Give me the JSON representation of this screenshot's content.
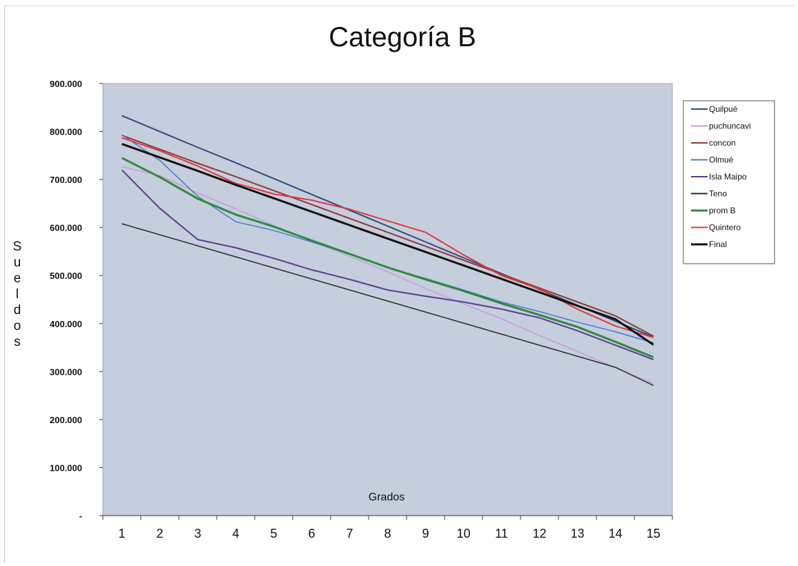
{
  "chart_data": {
    "type": "line",
    "title": "Categoría B",
    "xlabel": "Grados",
    "ylabel": "Sueldos",
    "x": [
      1,
      2,
      3,
      4,
      5,
      6,
      7,
      8,
      9,
      10,
      11,
      12,
      13,
      14,
      15
    ],
    "ylim": [
      0,
      900000
    ],
    "yticks": [
      0,
      100000,
      200000,
      300000,
      400000,
      500000,
      600000,
      700000,
      800000,
      900000
    ],
    "ytick_labels": [
      "-",
      "100.000",
      "200.000",
      "300.000",
      "400.000",
      "500.000",
      "600.000",
      "700.000",
      "800.000",
      "900.000"
    ],
    "grid": false,
    "plot_background": "#c5cedd",
    "legend_position": "right",
    "series": [
      {
        "name": "Quilpué",
        "color": "#2e4a7d",
        "width": 2,
        "values": [
          833000,
          800000,
          767000,
          735000,
          702000,
          669000,
          636000,
          603000,
          570000,
          537000,
          504000,
          471000,
          438000,
          405000,
          372000
        ]
      },
      {
        "name": "puchuncavi",
        "color": "#c89ad8",
        "width": 1.5,
        "values": [
          727000,
          708000,
          672000,
          639000,
          604000,
          572000,
          540000,
          508000,
          473000,
          441000,
          410000,
          375000,
          342000,
          308000,
          275000
        ]
      },
      {
        "name": "concon",
        "color": "#8b3a3a",
        "width": 2,
        "values": [
          792000,
          763000,
          734000,
          706000,
          677000,
          648000,
          619000,
          590000,
          561000,
          532000,
          503000,
          474000,
          445000,
          416000,
          374000
        ]
      },
      {
        "name": "Olmué",
        "color": "#4a78c8",
        "width": 1.5,
        "values": [
          793000,
          740000,
          665000,
          612000,
          594000,
          570000,
          545000,
          516000,
          494000,
          470000,
          445000,
          425000,
          403000,
          383000,
          360000
        ]
      },
      {
        "name": "Isla Maipo",
        "color": "#5c3a8a",
        "width": 2,
        "values": [
          720000,
          640000,
          575000,
          558000,
          536000,
          512000,
          492000,
          470000,
          457000,
          445000,
          430000,
          412000,
          385000,
          355000,
          325000
        ]
      },
      {
        "name": "Teno",
        "color": "#2a2a2a",
        "width": 1.5,
        "values": [
          608000,
          585000,
          562000,
          539000,
          516000,
          493000,
          470000,
          447000,
          424000,
          401000,
          378000,
          355000,
          332000,
          309000,
          271000
        ]
      },
      {
        "name": "prom B",
        "color": "#2e8b3a",
        "width": 3,
        "values": [
          745000,
          705000,
          660000,
          627000,
          602000,
          573000,
          545000,
          517000,
          492000,
          468000,
          442000,
          418000,
          393000,
          362000,
          330000
        ]
      },
      {
        "name": "Quintero",
        "color": "#e03838",
        "width": 2,
        "values": [
          787000,
          760000,
          728000,
          692000,
          670000,
          657000,
          638000,
          614000,
          590000,
          543000,
          500000,
          472000,
          430000,
          395000,
          371000
        ]
      },
      {
        "name": "Final",
        "color": "#111111",
        "width": 3,
        "values": [
          774000,
          746000,
          718000,
          689000,
          661000,
          633000,
          605000,
          577000,
          549000,
          521000,
          493000,
          465000,
          437000,
          409000,
          356000
        ]
      }
    ]
  }
}
